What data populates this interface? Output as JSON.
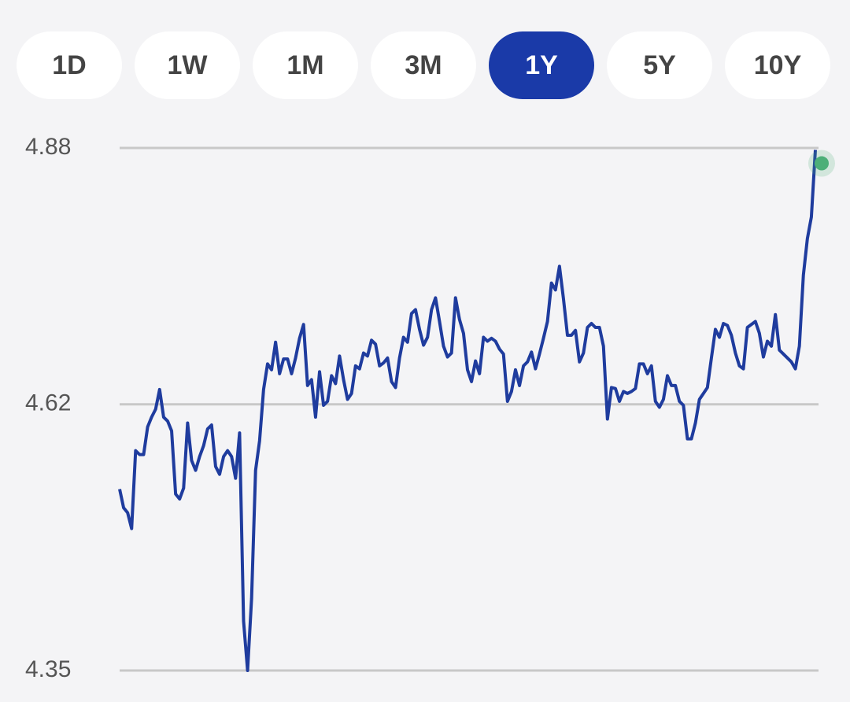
{
  "tabs": [
    "1D",
    "1W",
    "1M",
    "3M",
    "1Y",
    "5Y",
    "10Y"
  ],
  "selected_tab": 4,
  "chart_data": {
    "type": "line",
    "color": "#1f3c9e",
    "marker_color": "#4caf78",
    "grid": true,
    "ylim": [
      4.35,
      4.88
    ],
    "yticks": [
      4.35,
      4.62,
      4.88
    ],
    "values": [
      4.534,
      4.515,
      4.51,
      4.494,
      4.573,
      4.569,
      4.569,
      4.597,
      4.607,
      4.615,
      4.635,
      4.607,
      4.603,
      4.593,
      4.529,
      4.524,
      4.535,
      4.601,
      4.563,
      4.553,
      4.567,
      4.578,
      4.595,
      4.599,
      4.557,
      4.549,
      4.567,
      4.573,
      4.567,
      4.545,
      4.591,
      4.4,
      4.35,
      4.423,
      4.553,
      4.583,
      4.635,
      4.661,
      4.655,
      4.683,
      4.651,
      4.666,
      4.666,
      4.651,
      4.667,
      4.687,
      4.701,
      4.639,
      4.645,
      4.607,
      4.653,
      4.619,
      4.623,
      4.649,
      4.641,
      4.669,
      4.645,
      4.625,
      4.631,
      4.659,
      4.656,
      4.672,
      4.669,
      4.685,
      4.681,
      4.659,
      4.662,
      4.667,
      4.643,
      4.637,
      4.667,
      4.688,
      4.683,
      4.712,
      4.716,
      4.696,
      4.68,
      4.688,
      4.716,
      4.728,
      4.704,
      4.679,
      4.668,
      4.672,
      4.728,
      4.706,
      4.692,
      4.655,
      4.643,
      4.664,
      4.651,
      4.688,
      4.684,
      4.687,
      4.684,
      4.676,
      4.671,
      4.623,
      4.633,
      4.655,
      4.639,
      4.659,
      4.663,
      4.673,
      4.656,
      4.671,
      4.687,
      4.704,
      4.743,
      4.736,
      4.76,
      4.727,
      4.69,
      4.69,
      4.695,
      4.663,
      4.672,
      4.698,
      4.702,
      4.698,
      4.698,
      4.679,
      4.605,
      4.637,
      4.636,
      4.623,
      4.633,
      4.631,
      4.633,
      4.636,
      4.661,
      4.661,
      4.651,
      4.659,
      4.623,
      4.617,
      4.625,
      4.649,
      4.639,
      4.639,
      4.623,
      4.619,
      4.585,
      4.585,
      4.601,
      4.625,
      4.631,
      4.637,
      4.667,
      4.696,
      4.688,
      4.702,
      4.7,
      4.69,
      4.672,
      4.659,
      4.656,
      4.698,
      4.701,
      4.704,
      4.692,
      4.668,
      4.684,
      4.679,
      4.711,
      4.675,
      4.671,
      4.667,
      4.663,
      4.656,
      4.679,
      4.751,
      4.788,
      4.81,
      4.878
    ]
  }
}
